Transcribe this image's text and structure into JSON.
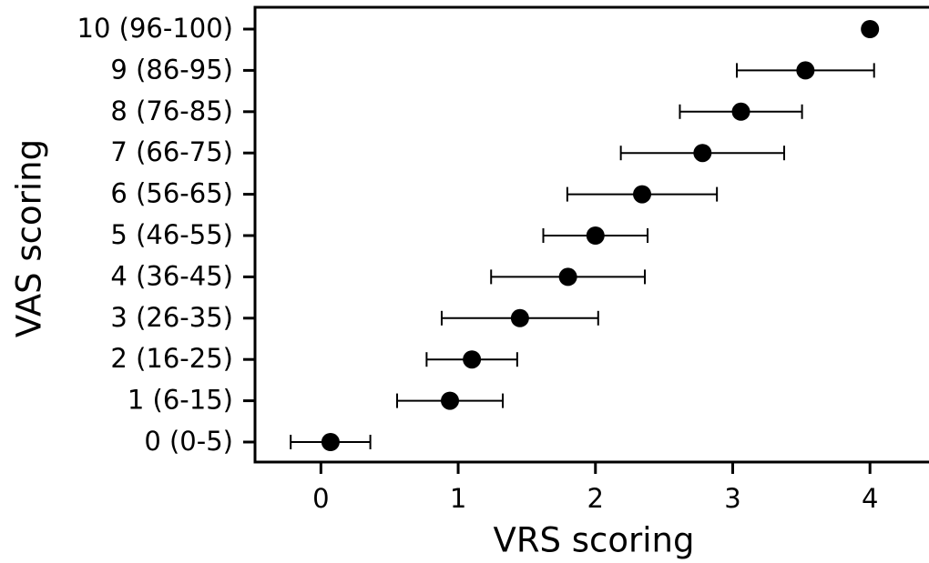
{
  "chart_data": {
    "type": "dot",
    "x_label": "VRS scoring",
    "y_label": "VAS scoring",
    "categories": [
      "0 (0-5)",
      "1 (6-15)",
      "2 (16-25)",
      "3 (26-35)",
      "4 (36-45)",
      "5 (46-55)",
      "6 (56-65)",
      "7 (66-75)",
      "8 (76-85)",
      "9 (86-95)",
      "10 (96-100)"
    ],
    "series": [
      {
        "color": "#000000",
        "values": [
          0.07,
          0.94,
          1.1,
          1.45,
          1.8,
          2.0,
          2.34,
          2.78,
          3.06,
          3.53,
          4.0
        ],
        "errors": [
          0.29,
          0.385,
          0.33,
          0.57,
          0.56,
          0.38,
          0.545,
          0.595,
          0.445,
          0.5,
          null
        ]
      }
    ],
    "xlim": [
      -0.48,
      4.43
    ],
    "xticks": [
      0,
      1,
      2,
      3,
      4
    ]
  }
}
